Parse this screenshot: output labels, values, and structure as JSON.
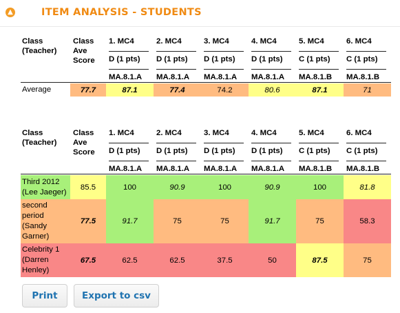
{
  "header": {
    "title": "ITEM ANALYSIS - STUDENTS",
    "collapse_icon": "chevron-up-icon",
    "accent_color": "#f08a12"
  },
  "columns": {
    "class_header": [
      "Class",
      "(Teacher)"
    ],
    "ave_header": [
      "Class",
      "Ave",
      "Score"
    ],
    "questions": [
      {
        "q": "1. MC4",
        "ans": "D (1 pts)",
        "std": "MA.8.1.A"
      },
      {
        "q": "2. MC4",
        "ans": "D (1 pts)",
        "std": "MA.8.1.A"
      },
      {
        "q": "3. MC4",
        "ans": "D (1 pts)",
        "std": "MA.8.1.A"
      },
      {
        "q": "4. MC4",
        "ans": "D (1 pts)",
        "std": "MA.8.1.A"
      },
      {
        "q": "5. MC4",
        "ans": "C (1 pts)",
        "std": "MA.8.1.B"
      },
      {
        "q": "6. MC4",
        "ans": "C (1 pts)",
        "std": "MA.8.1.B"
      }
    ]
  },
  "average_table": {
    "row": {
      "label": "Average",
      "ave": {
        "value": "77.7",
        "color": "orange",
        "style": "b"
      },
      "cells": [
        {
          "value": "87.1",
          "color": "yellow",
          "style": "b"
        },
        {
          "value": "77.4",
          "color": "orange",
          "style": "b"
        },
        {
          "value": "74.2",
          "color": "orange",
          "style": ""
        },
        {
          "value": "80.6",
          "color": "yellow",
          "style": "i"
        },
        {
          "value": "87.1",
          "color": "yellow",
          "style": "b"
        },
        {
          "value": "71",
          "color": "orange",
          "style": "i"
        }
      ]
    }
  },
  "class_table": {
    "rows": [
      {
        "label_lines": [
          "Third 2012",
          "(Lee Jaeger)"
        ],
        "ave": {
          "value": "85.5",
          "color": "yellow",
          "style": ""
        },
        "cells": [
          {
            "value": "100",
            "color": "green",
            "style": ""
          },
          {
            "value": "90.9",
            "color": "green",
            "style": "i"
          },
          {
            "value": "100",
            "color": "green",
            "style": ""
          },
          {
            "value": "90.9",
            "color": "green",
            "style": "i"
          },
          {
            "value": "100",
            "color": "green",
            "style": ""
          },
          {
            "value": "81.8",
            "color": "yellow",
            "style": "i"
          }
        ]
      },
      {
        "label_lines": [
          "second",
          "period",
          "(Sandy",
          "Garner)"
        ],
        "ave": {
          "value": "77.5",
          "color": "orange",
          "style": "b"
        },
        "cells": [
          {
            "value": "91.7",
            "color": "green",
            "style": "i"
          },
          {
            "value": "75",
            "color": "orange",
            "style": ""
          },
          {
            "value": "75",
            "color": "orange",
            "style": ""
          },
          {
            "value": "91.7",
            "color": "green",
            "style": "i"
          },
          {
            "value": "75",
            "color": "orange",
            "style": ""
          },
          {
            "value": "58.3",
            "color": "red",
            "style": ""
          }
        ]
      },
      {
        "label_lines": [
          "Celebrity 1",
          "(Darren",
          "Henley)"
        ],
        "ave": {
          "value": "67.5",
          "color": "red",
          "style": "b"
        },
        "cells": [
          {
            "value": "62.5",
            "color": "red",
            "style": ""
          },
          {
            "value": "62.5",
            "color": "red",
            "style": ""
          },
          {
            "value": "37.5",
            "color": "red",
            "style": ""
          },
          {
            "value": "50",
            "color": "red",
            "style": ""
          },
          {
            "value": "87.5",
            "color": "yellow",
            "style": "b"
          },
          {
            "value": "75",
            "color": "orange",
            "style": ""
          }
        ]
      }
    ]
  },
  "buttons": {
    "print": "Print",
    "export": "Export to csv"
  }
}
